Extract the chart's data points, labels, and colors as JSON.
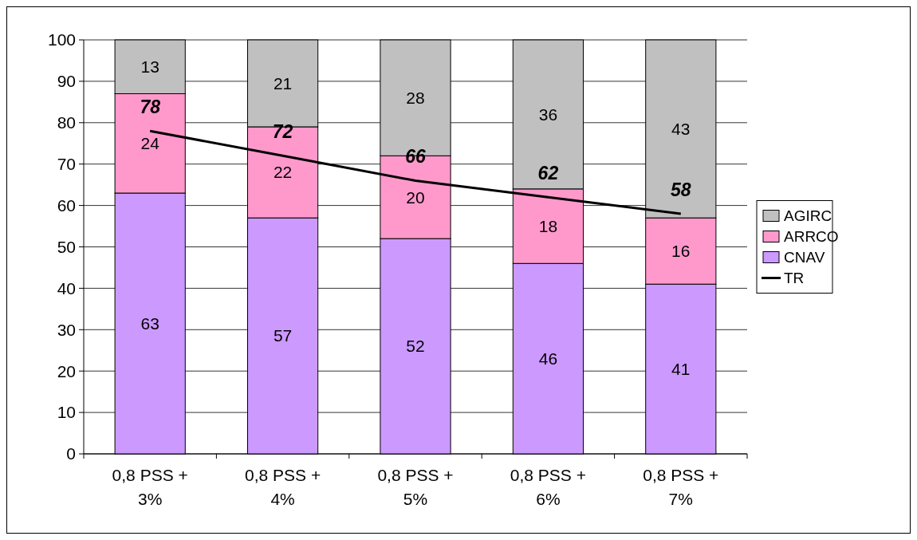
{
  "chart_data": {
    "type": "bar",
    "stacked": true,
    "categories": [
      "0,8 PSS + 3%",
      "0,8 PSS + 4%",
      "0,8 PSS + 5%",
      "0,8 PSS + 6%",
      "0,8 PSS + 7%"
    ],
    "series": [
      {
        "name": "CNAV",
        "color": "#cc99ff",
        "values": [
          63,
          57,
          52,
          46,
          41
        ]
      },
      {
        "name": "ARRCO",
        "color": "#ff99cc",
        "values": [
          24,
          22,
          20,
          18,
          16
        ]
      },
      {
        "name": "AGIRC",
        "color": "#c0c0c0",
        "values": [
          13,
          21,
          28,
          36,
          43
        ]
      },
      {
        "name": "TR",
        "type": "line",
        "color": "#000000",
        "values": [
          78,
          72,
          66,
          62,
          58
        ]
      }
    ],
    "ylim": [
      0,
      100
    ],
    "yticks": [
      0,
      10,
      20,
      30,
      40,
      50,
      60,
      70,
      80,
      90,
      100
    ],
    "grid": "y",
    "legend": "right",
    "data_labels": true,
    "marker": "none",
    "line_style": "solid"
  }
}
